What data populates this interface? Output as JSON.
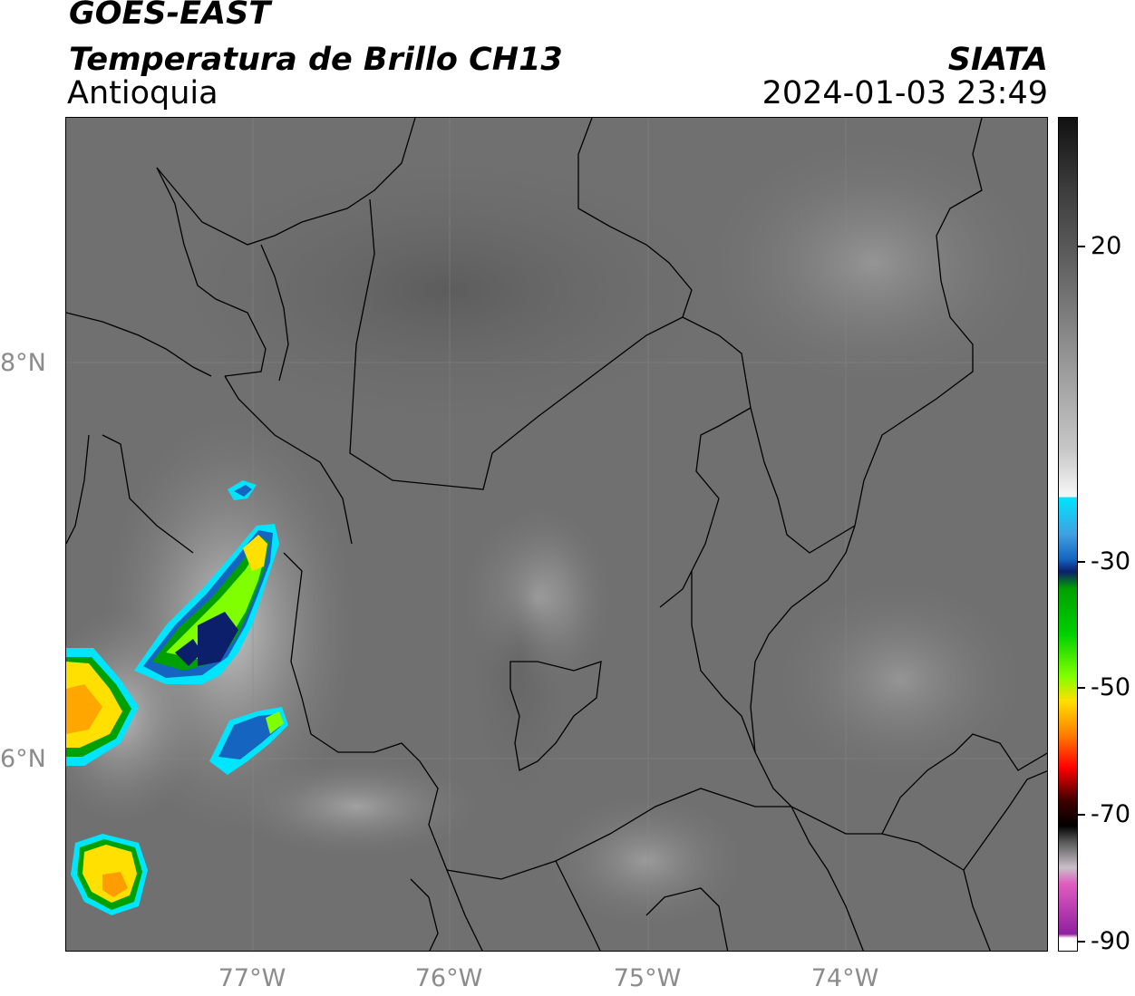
{
  "header": {
    "satellite": "GOES-EAST",
    "product": "Temperatura de Brillo CH13",
    "region": "Antioquia",
    "agency": "SIATA",
    "datetime": "2024-01-03 23:49"
  },
  "map": {
    "lat_labels": [
      "8°N",
      "6°N"
    ],
    "lon_labels": [
      "77°W",
      "76°W",
      "75°W",
      "74°W"
    ],
    "gridlines": true
  },
  "colorbar": {
    "ticks": [
      "20",
      "-30",
      "-50",
      "-70",
      "-90"
    ],
    "colors": {
      "warm_top": "#111111",
      "gray_mid": "#9a9a9a",
      "white": "#f4f4f4",
      "cyan": "#00e5ff",
      "blue": "#1565c0",
      "navy": "#0b1f6b",
      "green": "#00a000",
      "lime": "#7fff00",
      "yellow": "#ffe000",
      "orange": "#ff8000",
      "red": "#ff0000",
      "darkred": "#400000",
      "black": "#000000",
      "pink": "#e05cc0",
      "purple": "#9020a0"
    }
  }
}
